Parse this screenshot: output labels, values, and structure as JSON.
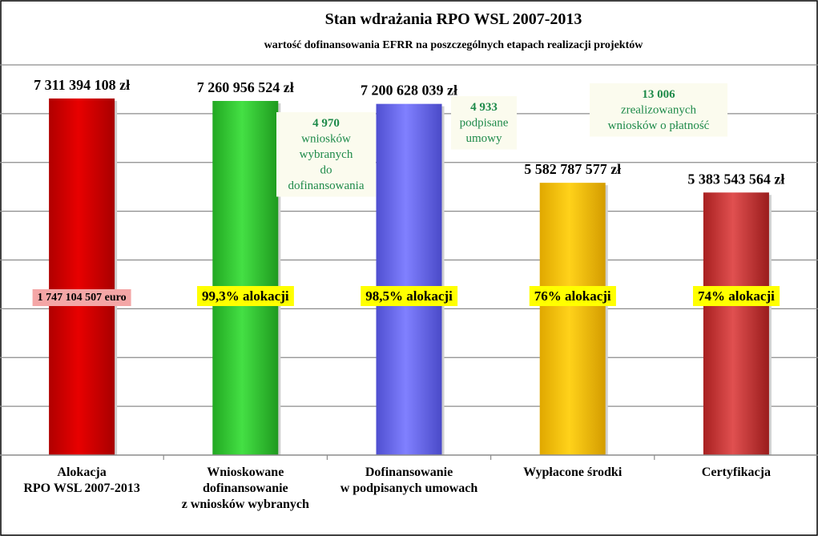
{
  "chart_data": {
    "type": "bar",
    "title": "Stan wdrażania RPO WSL 2007-2013",
    "subtitle": "wartość dofinansowania EFRR na poszczególnych etapach realizacji projektów",
    "categories": [
      [
        "Alokacja",
        "RPO WSL 2007-2013"
      ],
      [
        "Wnioskowane",
        "dofinansowanie",
        "z wniosków wybranych"
      ],
      [
        "Dofinansowanie",
        "w podpisanych umowach"
      ],
      [
        "Wypłacone środki"
      ],
      [
        "Certyfikacja"
      ]
    ],
    "values": [
      7311394108,
      7260956524,
      7200628039,
      5582787577,
      5383543564
    ],
    "value_labels": [
      "7 311 394 108 zł",
      "7 260 956 524 zł",
      "7 200 628 039 zł",
      "5 582 787 577 zł",
      "5 383 543 564 zł"
    ],
    "inner_labels": [
      "1 747 104 507 euro",
      "99,3% alokacji",
      "98,5% alokacji",
      "76% alokacji",
      "74% alokacji"
    ],
    "colors": [
      "#dc0000",
      "#2ecf2e",
      "#6a6af0",
      "#ffc800",
      "#d63c3c"
    ],
    "ylim": [
      0,
      8000000000
    ],
    "grid": true,
    "annotations": [
      {
        "bar": 1,
        "bold": "4 970",
        "lines": [
          "wniosków",
          "wybranych",
          "do",
          "dofinansowania"
        ]
      },
      {
        "bar": 2,
        "bold": "4 933",
        "lines": [
          "podpisane",
          "umowy"
        ]
      },
      {
        "bar": 4,
        "bold": "13 006",
        "lines": [
          "zrealizowanych",
          "wniosków  o płatność"
        ]
      }
    ]
  }
}
